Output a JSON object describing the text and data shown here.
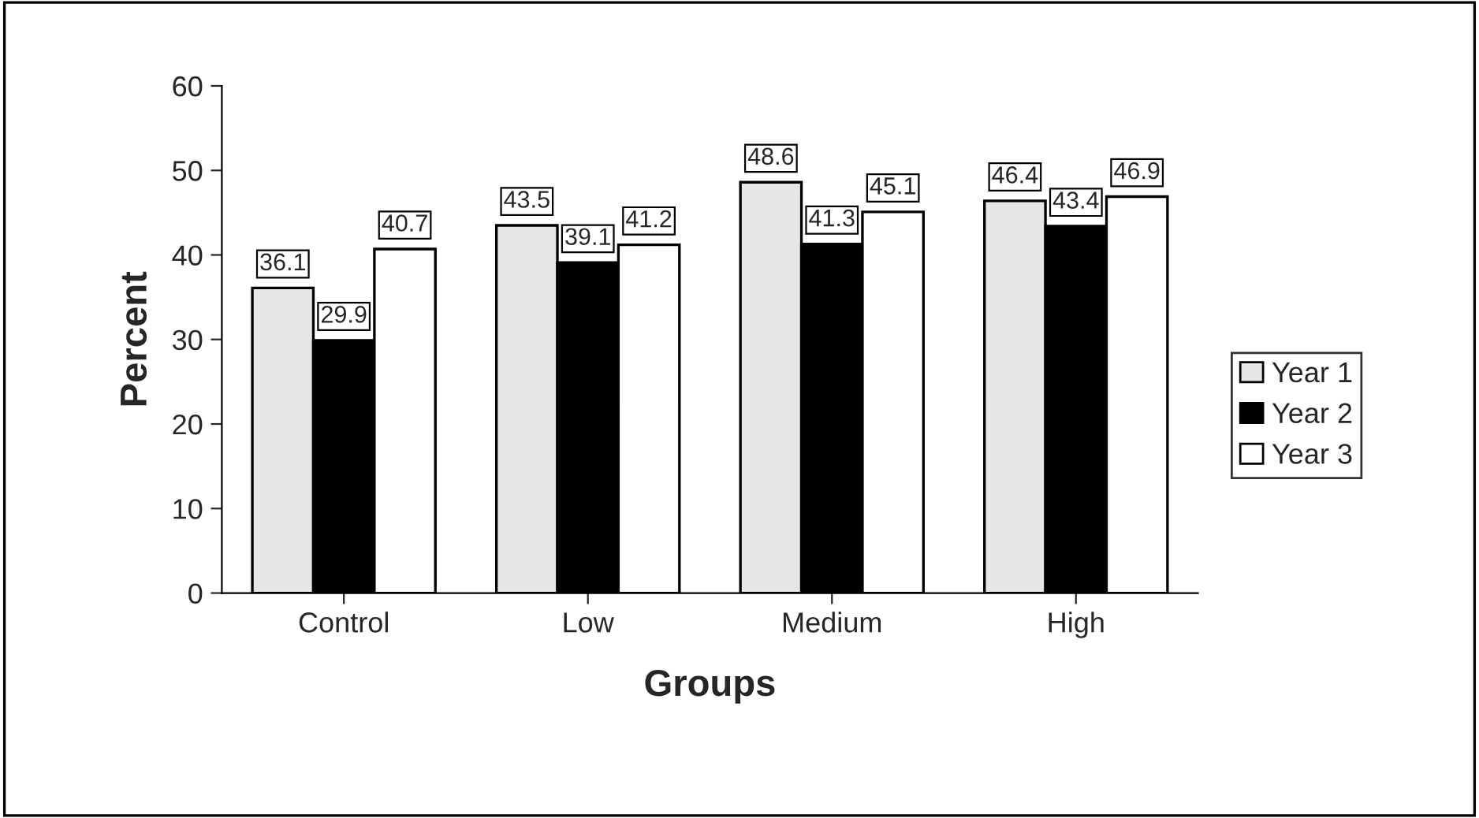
{
  "chart_data": {
    "type": "bar",
    "xlabel": "Groups",
    "ylabel": "Percent",
    "categories": [
      "Control",
      "Low",
      "Medium",
      "High"
    ],
    "series": [
      {
        "name": "Year 1",
        "color": "#e6e6e6",
        "values": [
          36.1,
          43.5,
          48.6,
          46.4
        ]
      },
      {
        "name": "Year 2",
        "color": "#000000",
        "values": [
          29.9,
          39.1,
          41.3,
          43.4
        ]
      },
      {
        "name": "Year 3",
        "color": "#ffffff",
        "values": [
          40.7,
          41.2,
          45.1,
          46.9
        ]
      }
    ],
    "ylim": [
      0,
      60
    ],
    "yticks": [
      0,
      10,
      20,
      30,
      40,
      50,
      60
    ],
    "grid": false,
    "legend": "right",
    "data_labels": true
  }
}
